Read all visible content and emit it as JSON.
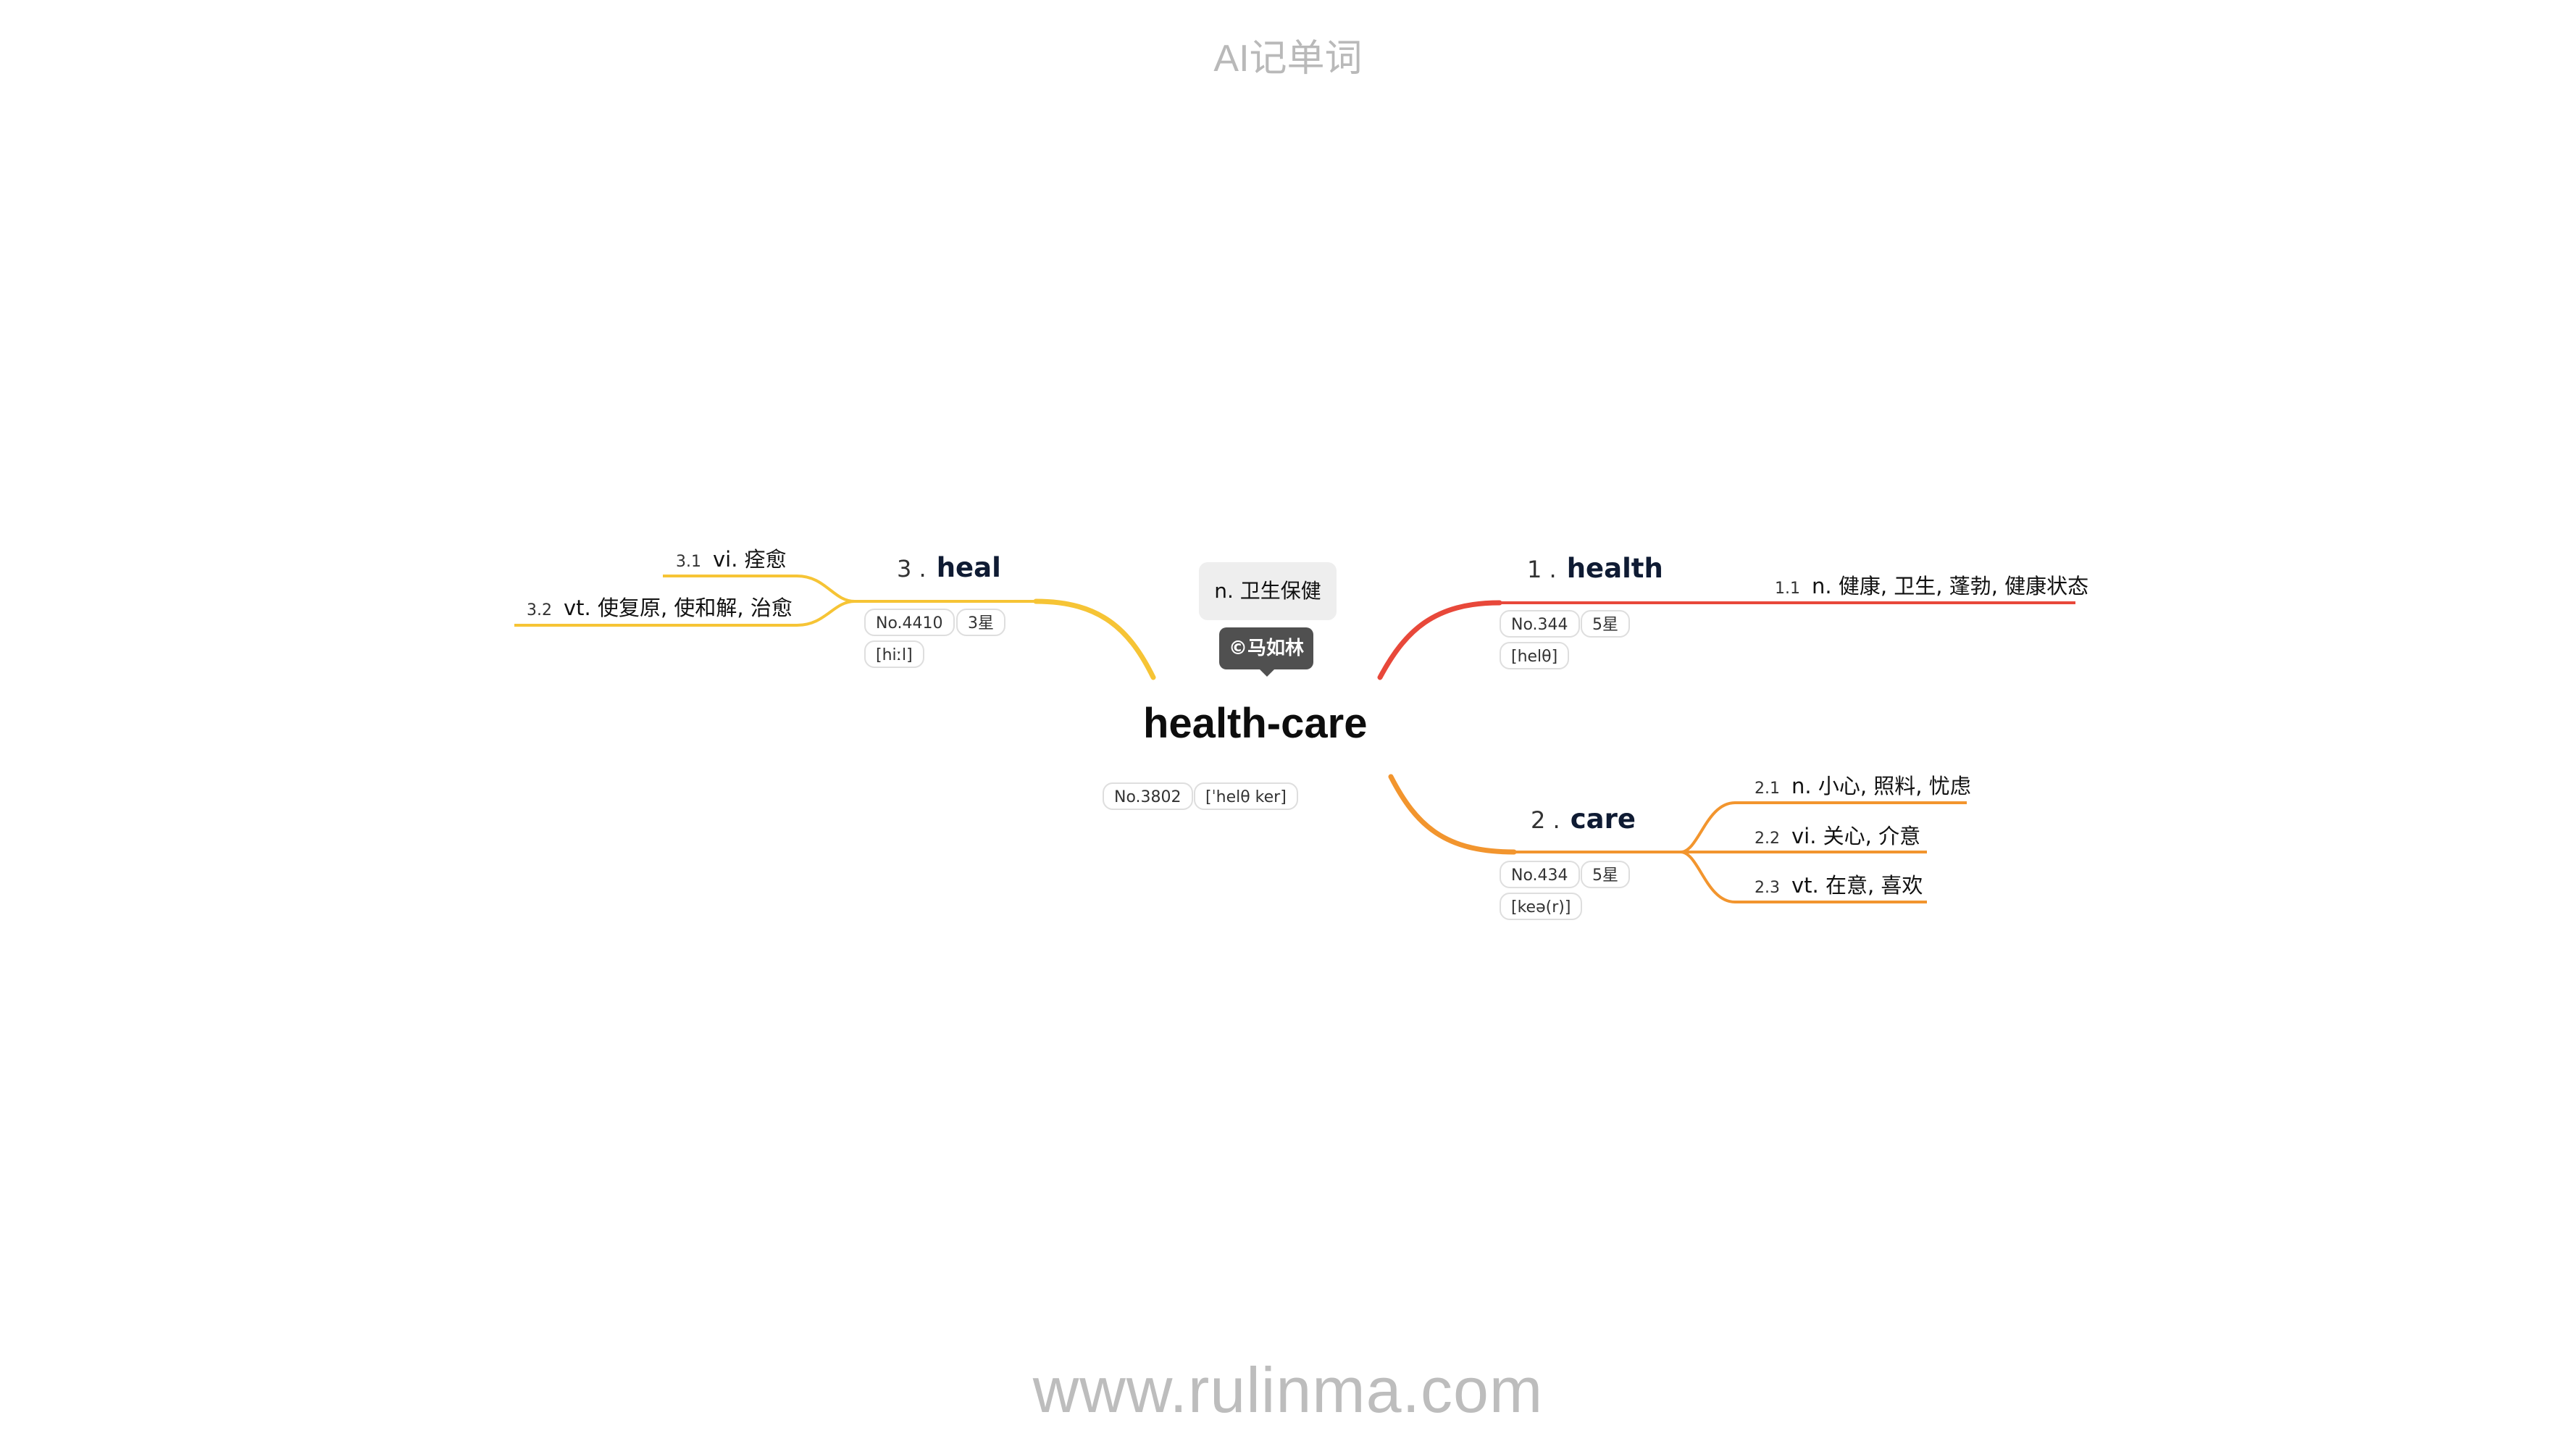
{
  "header": {
    "title": "AI记单词"
  },
  "footer": {
    "url": "www.rulinma.com"
  },
  "colors": {
    "health": "#e8483a",
    "care": "#f2952e",
    "heal": "#f6c435"
  },
  "center": {
    "word": "health-care",
    "meaning": "n. 卫生保健",
    "author": "©马如林",
    "number": "No.3802",
    "phonetic": "[ˈhelθ ker]"
  },
  "branches": [
    {
      "index": "1 .",
      "word": "health",
      "number": "No.344",
      "stars": "5星",
      "phonetic": "[helθ]",
      "senses": [
        {
          "num": "1.1",
          "text": "n. 健康, 卫生, 蓬勃, 健康状态"
        }
      ]
    },
    {
      "index": "2 .",
      "word": "care",
      "number": "No.434",
      "stars": "5星",
      "phonetic": "[keə(r)]",
      "senses": [
        {
          "num": "2.1",
          "text": "n. 小心, 照料, 忧虑"
        },
        {
          "num": "2.2",
          "text": "vi. 关心, 介意"
        },
        {
          "num": "2.3",
          "text": "vt. 在意, 喜欢"
        }
      ]
    },
    {
      "index": "3 .",
      "word": "heal",
      "number": "No.4410",
      "stars": "3星",
      "phonetic": "[hiːl]",
      "senses": [
        {
          "num": "3.1",
          "text": "vi. 痊愈"
        },
        {
          "num": "3.2",
          "text": "vt. 使复原, 使和解, 治愈"
        }
      ]
    }
  ]
}
